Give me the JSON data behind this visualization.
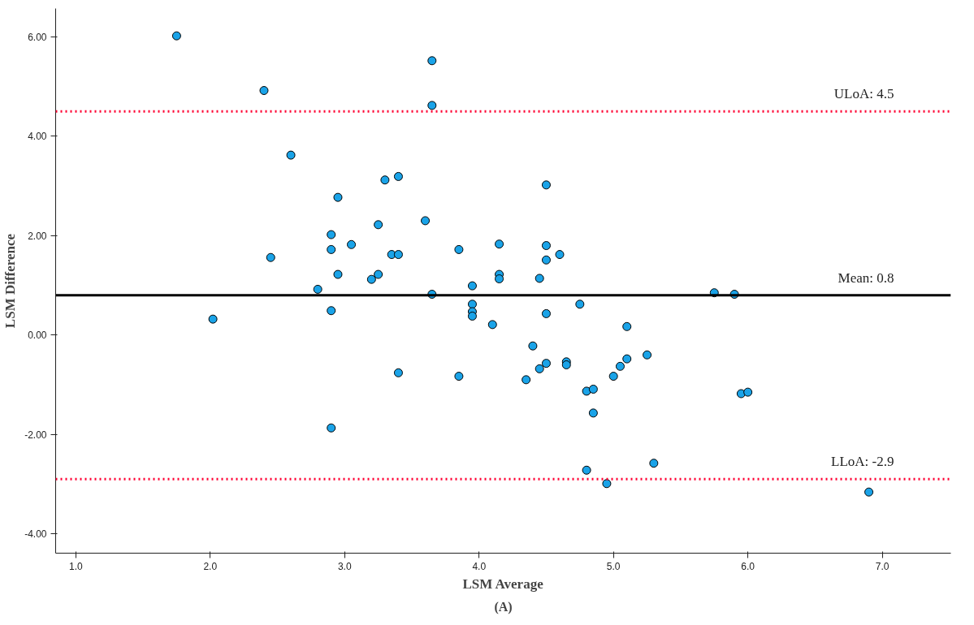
{
  "chart_data": {
    "type": "scatter",
    "xlabel": "LSM Average",
    "ylabel": "LSM Difference",
    "x": [
      1.75,
      2.02,
      2.4,
      2.45,
      2.6,
      2.8,
      2.9,
      2.9,
      2.9,
      2.9,
      2.95,
      2.95,
      3.05,
      3.2,
      3.25,
      3.25,
      3.3,
      3.35,
      3.4,
      3.4,
      3.4,
      3.6,
      3.65,
      3.65,
      3.65,
      3.85,
      3.85,
      3.95,
      3.95,
      3.95,
      3.95,
      4.1,
      4.15,
      4.15,
      4.15,
      4.35,
      4.4,
      4.45,
      4.45,
      4.5,
      4.5,
      4.5,
      4.5,
      4.5,
      4.6,
      4.65,
      4.65,
      4.75,
      4.8,
      4.8,
      4.85,
      4.85,
      4.95,
      5.0,
      5.05,
      5.1,
      5.1,
      5.25,
      5.3,
      5.75,
      5.9,
      5.95,
      6.0,
      6.9
    ],
    "series": [
      {
        "color": "#1aa3e8",
        "values": [
          6.02,
          0.32,
          4.92,
          1.56,
          3.62,
          0.92,
          2.02,
          1.72,
          0.49,
          -1.87,
          2.77,
          1.22,
          1.82,
          1.12,
          2.22,
          1.22,
          3.12,
          1.62,
          1.62,
          3.19,
          -0.76,
          2.3,
          5.52,
          4.62,
          0.82,
          1.72,
          -0.83,
          0.99,
          0.62,
          0.47,
          0.38,
          0.21,
          1.83,
          1.22,
          1.13,
          -0.9,
          -0.22,
          1.14,
          -0.68,
          3.02,
          1.8,
          1.51,
          0.43,
          -0.57,
          1.62,
          -0.54,
          -0.6,
          0.62,
          -1.13,
          -2.72,
          -1.09,
          -1.57,
          -2.99,
          -0.83,
          -0.63,
          0.17,
          -0.48,
          -0.4,
          -2.58,
          0.85,
          0.82,
          -1.18,
          -1.15,
          -3.16
        ]
      }
    ],
    "marker": "circle",
    "grid": false,
    "xlim": [
      0.85,
      7.51
    ],
    "ylim": [
      -4.39,
      6.57
    ],
    "xticks": [
      {
        "value": 1,
        "label": "1.0"
      },
      {
        "value": 2,
        "label": "2.0"
      },
      {
        "value": 3,
        "label": "3.0"
      },
      {
        "value": 4,
        "label": "4.0"
      },
      {
        "value": 5,
        "label": "5.0"
      },
      {
        "value": 6,
        "label": "6.0"
      },
      {
        "value": 7,
        "label": "7.0"
      }
    ],
    "yticks": [
      {
        "value": -4,
        "label": "-4.00"
      },
      {
        "value": -2,
        "label": "-2.00"
      },
      {
        "value": 0,
        "label": "0.00"
      },
      {
        "value": 2,
        "label": "2.00"
      },
      {
        "value": 4,
        "label": "4.00"
      },
      {
        "value": 6,
        "label": "6.00"
      }
    ],
    "ref_lines": [
      {
        "axis": "y",
        "value": 4.5,
        "label": "ULoA: 4.5",
        "color": "#ff0033",
        "line_style": "dotted"
      },
      {
        "axis": "y",
        "value": 0.8,
        "label": "Mean: 0.8",
        "color": "#000000",
        "line_style": "solid"
      },
      {
        "axis": "y",
        "value": -2.9,
        "label": "LLoA: -2.9",
        "color": "#ff0033",
        "line_style": "dotted"
      }
    ],
    "annotations": [
      "(A)"
    ]
  }
}
